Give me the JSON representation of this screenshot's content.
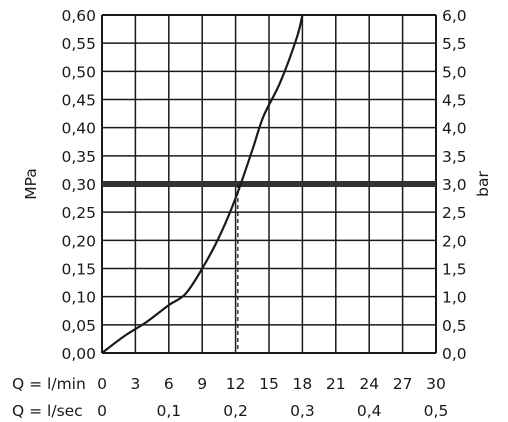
{
  "chart_data": {
    "type": "line",
    "title": "",
    "left_axis": {
      "label": "MPa",
      "min": 0,
      "max": 0.6,
      "ticks": [
        "0,00",
        "0,05",
        "0,10",
        "0,15",
        "0,20",
        "0,25",
        "0,30",
        "0,35",
        "0,40",
        "0,45",
        "0,50",
        "0,55",
        "0,60"
      ]
    },
    "right_axis": {
      "label": "bar",
      "min": 0,
      "max": 6,
      "ticks": [
        "0,0",
        "0,5",
        "1,0",
        "1,5",
        "2,0",
        "2,5",
        "3,0",
        "3,5",
        "4,0",
        "4,5",
        "5,0",
        "5,5",
        "6,0"
      ]
    },
    "x_axis_rows": [
      {
        "label": "Q = l/min",
        "min": 0,
        "max": 30,
        "ticks": [
          "0",
          "3",
          "6",
          "9",
          "12",
          "15",
          "18",
          "21",
          "24",
          "27",
          "30"
        ],
        "tick_values": [
          0,
          3,
          6,
          9,
          12,
          15,
          18,
          21,
          24,
          27,
          30
        ]
      },
      {
        "label": "Q = l/sec",
        "min": 0,
        "max": 0.5,
        "ticks": [
          "0",
          "0,1",
          "0,2",
          "0,3",
          "0,4",
          "0,5"
        ],
        "tick_values": [
          0,
          0.1,
          0.2,
          0.3,
          0.4,
          0.5
        ]
      }
    ],
    "series": [
      {
        "unit_x": "l/min",
        "unit_y": "MPa",
        "x": [
          0,
          2,
          4,
          6,
          7.5,
          9,
          10.5,
          12,
          13.5,
          14.5,
          16,
          17.5,
          18
        ],
        "y": [
          0,
          0.03,
          0.055,
          0.085,
          0.105,
          0.15,
          0.205,
          0.275,
          0.36,
          0.42,
          0.48,
          0.56,
          0.6
        ]
      }
    ],
    "reference_line": {
      "y": 0.3,
      "unit": "MPa"
    },
    "intersection_marker": {
      "x": 12.2,
      "y": 0.3
    },
    "grid": true,
    "colors": {
      "line": "#1a1a1a",
      "grid": "#1a1a1a",
      "reference": "#333333"
    }
  }
}
